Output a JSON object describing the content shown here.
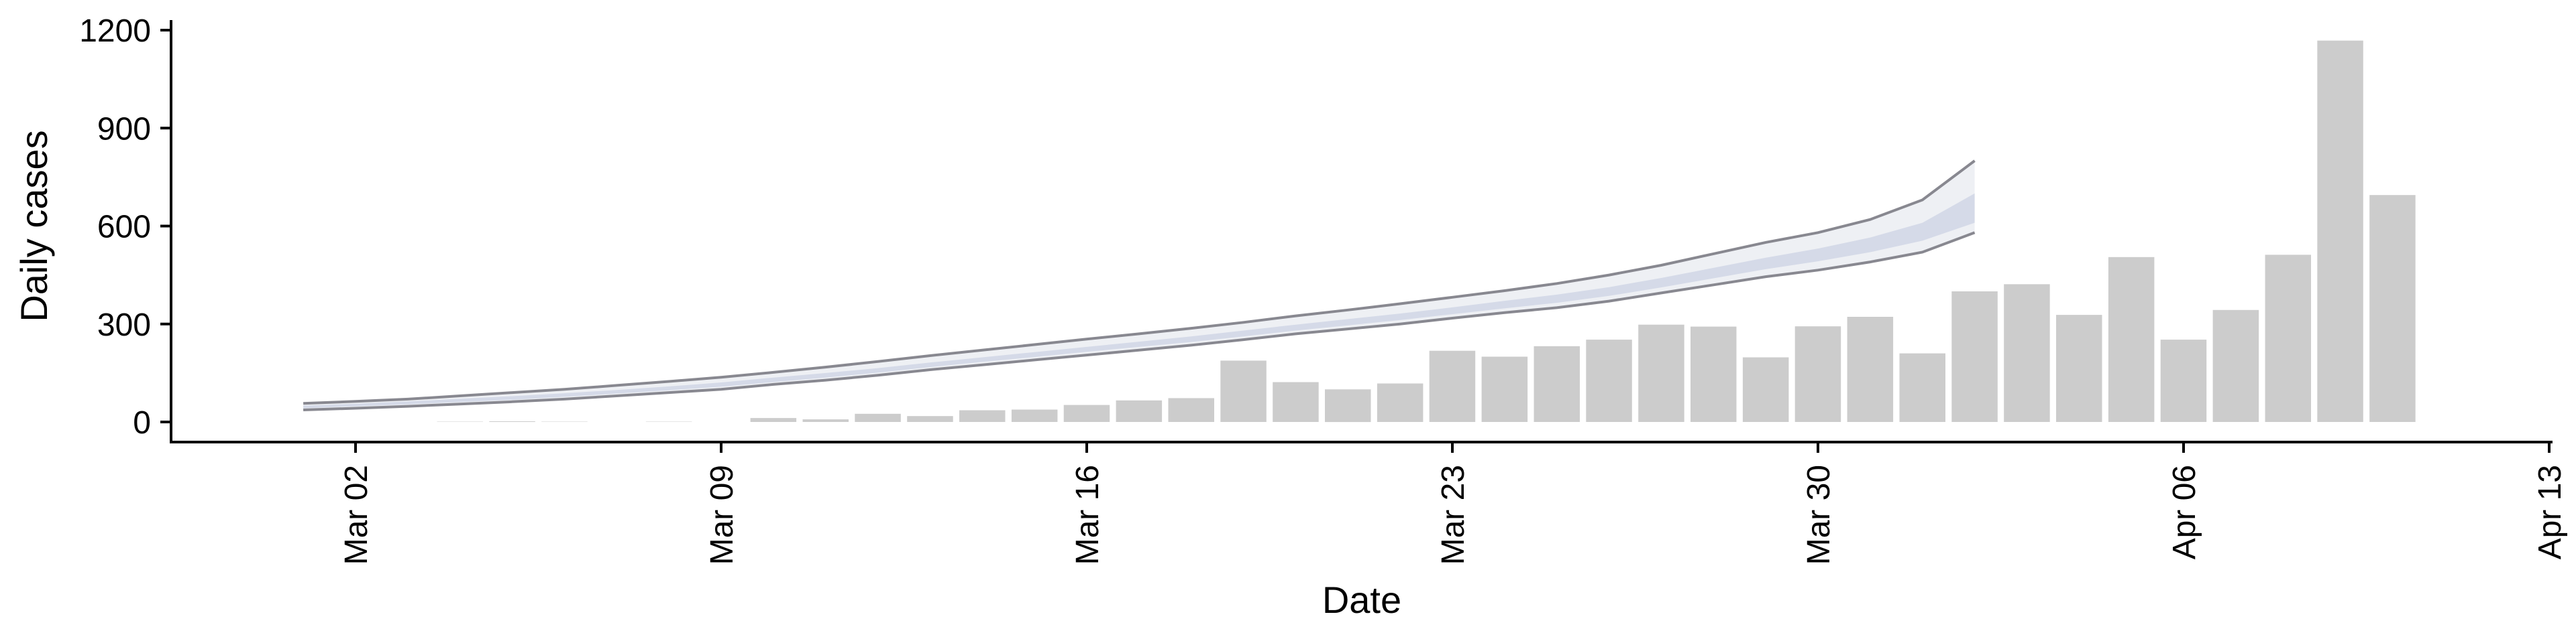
{
  "chart_data": {
    "type": "bar",
    "title": "",
    "xlabel": "Date",
    "ylabel": "Daily cases",
    "ylim": [
      0,
      1200
    ],
    "xlim": [
      "2020-02-26",
      "2020-04-13"
    ],
    "grid": false,
    "legend": "none",
    "y_ticks": [
      0,
      300,
      600,
      900,
      1200
    ],
    "x_ticks": [
      {
        "date": "2020-03-02",
        "label": "Mar 02"
      },
      {
        "date": "2020-03-09",
        "label": "Mar 09"
      },
      {
        "date": "2020-03-16",
        "label": "Mar 16"
      },
      {
        "date": "2020-03-23",
        "label": "Mar 23"
      },
      {
        "date": "2020-03-30",
        "label": "Mar 30"
      },
      {
        "date": "2020-04-06",
        "label": "Apr 06"
      },
      {
        "date": "2020-04-13",
        "label": "Apr 13"
      }
    ],
    "bars": {
      "color": "#cccccc",
      "dates": [
        "2020-03-04",
        "2020-03-05",
        "2020-03-06",
        "2020-03-07",
        "2020-03-08",
        "2020-03-09",
        "2020-03-10",
        "2020-03-11",
        "2020-03-12",
        "2020-03-13",
        "2020-03-14",
        "2020-03-15",
        "2020-03-16",
        "2020-03-17",
        "2020-03-18",
        "2020-03-19",
        "2020-03-20",
        "2020-03-21",
        "2020-03-22",
        "2020-03-23",
        "2020-03-24",
        "2020-03-25",
        "2020-03-26",
        "2020-03-27",
        "2020-03-28",
        "2020-03-29",
        "2020-03-30",
        "2020-03-31",
        "2020-04-01",
        "2020-04-02",
        "2020-04-03",
        "2020-04-04",
        "2020-04-05",
        "2020-04-06",
        "2020-04-07",
        "2020-04-08",
        "2020-04-09",
        "2020-04-10",
        "2020-04-11"
      ],
      "values": [
        1,
        2,
        1,
        0,
        1,
        0,
        12,
        8,
        25,
        18,
        36,
        38,
        52,
        66,
        73,
        188,
        122,
        100,
        118,
        218,
        200,
        232,
        252,
        298,
        292,
        198,
        293,
        322,
        210,
        400,
        422,
        328,
        505,
        252,
        343,
        512,
        1168,
        695,
        0
      ]
    },
    "forecast": {
      "dates": [
        "2020-03-01",
        "2020-03-02",
        "2020-03-03",
        "2020-03-04",
        "2020-03-05",
        "2020-03-06",
        "2020-03-07",
        "2020-03-08",
        "2020-03-09",
        "2020-03-10",
        "2020-03-11",
        "2020-03-12",
        "2020-03-13",
        "2020-03-14",
        "2020-03-15",
        "2020-03-16",
        "2020-03-17",
        "2020-03-18",
        "2020-03-19",
        "2020-03-20",
        "2020-03-21",
        "2020-03-22",
        "2020-03-23",
        "2020-03-24",
        "2020-03-25",
        "2020-03-26",
        "2020-03-27",
        "2020-03-28",
        "2020-03-29",
        "2020-03-30",
        "2020-03-31",
        "2020-04-01",
        "2020-04-02"
      ],
      "lower": [
        37,
        42,
        48,
        55,
        62,
        70,
        80,
        90,
        100,
        115,
        128,
        143,
        160,
        175,
        190,
        205,
        220,
        235,
        252,
        270,
        285,
        300,
        318,
        335,
        350,
        370,
        395,
        420,
        445,
        465,
        490,
        520,
        580
      ],
      "inner_lower": [
        42,
        48,
        54,
        61,
        68,
        77,
        87,
        97,
        108,
        122,
        136,
        151,
        168,
        184,
        199,
        215,
        230,
        245,
        262,
        280,
        296,
        312,
        330,
        348,
        365,
        386,
        412,
        440,
        468,
        492,
        520,
        555,
        610
      ],
      "inner_upper": [
        50,
        56,
        63,
        71,
        79,
        88,
        98,
        109,
        121,
        136,
        150,
        165,
        182,
        198,
        214,
        230,
        246,
        262,
        280,
        298,
        315,
        332,
        351,
        371,
        390,
        413,
        441,
        472,
        503,
        531,
        565,
        610,
        700
      ],
      "upper": [
        57,
        63,
        70,
        80,
        90,
        100,
        112,
        124,
        137,
        152,
        168,
        185,
        203,
        220,
        237,
        254,
        270,
        287,
        305,
        325,
        343,
        362,
        382,
        402,
        424,
        450,
        480,
        515,
        550,
        580,
        620,
        680,
        800
      ],
      "outer_color": "#eef0f4",
      "inner_color": "#d5dae8",
      "line_color": "#888890"
    }
  }
}
